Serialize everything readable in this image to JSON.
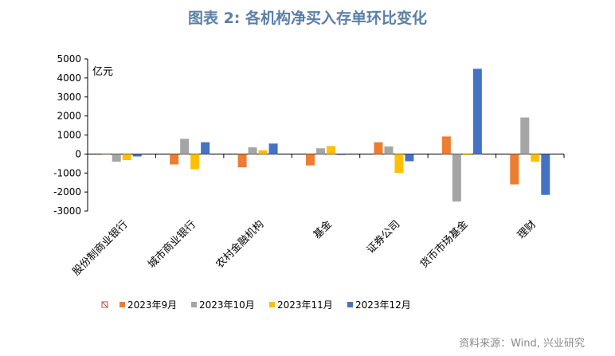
{
  "title": "图表 2:  各机构净买入存单环比变化",
  "source": "资料来源：Wind, 兴业研究",
  "chart_data": {
    "type": "bar",
    "unit_label": "亿元",
    "ylim": [
      -3000,
      5000
    ],
    "yticks": [
      -3000,
      -2000,
      -1000,
      0,
      1000,
      2000,
      3000,
      4000,
      5000
    ],
    "categories": [
      "股份制商业银行",
      "城市商业银行",
      "农村金融机构",
      "基金",
      "证券公司",
      "货币市场基金",
      "理财"
    ],
    "series": [
      {
        "name": "",
        "color": "#c0504d",
        "values": [
          null,
          null,
          null,
          null,
          null,
          null,
          null
        ]
      },
      {
        "name": "2023年9月",
        "color": "#ed7d31",
        "values": [
          0,
          -550,
          -700,
          -600,
          620,
          920,
          -1600
        ]
      },
      {
        "name": "2023年10月",
        "color": "#a5a5a5",
        "values": [
          -400,
          800,
          350,
          300,
          400,
          -2500,
          1920
        ]
      },
      {
        "name": "2023年11月",
        "color": "#ffc000",
        "values": [
          -320,
          -800,
          200,
          420,
          -1000,
          -50,
          -400
        ]
      },
      {
        "name": "2023年12月",
        "color": "#4472c4",
        "values": [
          -130,
          620,
          550,
          -50,
          -380,
          4480,
          -2150
        ]
      }
    ]
  }
}
